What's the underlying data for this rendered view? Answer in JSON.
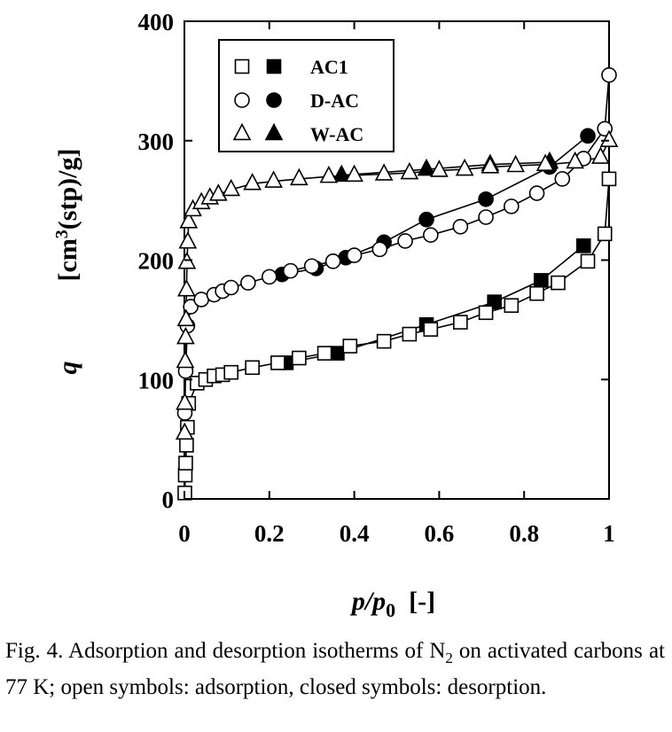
{
  "chart_data": {
    "type": "scatter",
    "xlabel": "p/p0 [-]",
    "xlabel_main": "p/p",
    "xlabel_sub": "0",
    "xlabel_unit": "[-]",
    "ylabel_var": "q",
    "ylabel_unit_a": "[cm",
    "ylabel_unit_sup": "3",
    "ylabel_unit_b": "(stp)/g]",
    "xlim": [
      0,
      1
    ],
    "ylim": [
      0,
      400
    ],
    "x_ticks": [
      0,
      0.2,
      0.4,
      0.6,
      0.8,
      1
    ],
    "x_tick_labels": [
      "0",
      "0.2",
      "0.4",
      "0.6",
      "0.8",
      "1"
    ],
    "y_ticks": [
      0,
      100,
      200,
      300,
      400
    ],
    "y_tick_labels": [
      "0",
      "100",
      "200",
      "300",
      "400"
    ],
    "grid": false,
    "legend_position": "top-left",
    "series": [
      {
        "name": "AC1",
        "marker": "square",
        "fill": "open",
        "x": [
          0.001,
          0.002,
          0.003,
          0.005,
          0.007,
          0.01,
          0.03,
          0.05,
          0.07,
          0.09,
          0.11,
          0.16,
          0.22,
          0.27,
          0.33,
          0.39,
          0.47,
          0.53,
          0.58,
          0.65,
          0.71,
          0.77,
          0.83,
          0.88,
          0.95,
          0.99,
          1.0
        ],
        "y": [
          5,
          20,
          30,
          45,
          60,
          80,
          97,
          100,
          103,
          104,
          106,
          110,
          114,
          118,
          122,
          128,
          132,
          138,
          142,
          148,
          156,
          162,
          172,
          181,
          199,
          222,
          268
        ]
      },
      {
        "name": "AC1",
        "marker": "square",
        "fill": "closed",
        "x": [
          0.24,
          0.36,
          0.57,
          0.73,
          0.84,
          0.94
        ],
        "y": [
          114,
          122,
          146,
          165,
          183,
          212
        ]
      },
      {
        "name": "D-AC",
        "marker": "circle",
        "fill": "open",
        "x": [
          0.001,
          0.003,
          0.007,
          0.015,
          0.04,
          0.07,
          0.09,
          0.11,
          0.15,
          0.2,
          0.25,
          0.3,
          0.35,
          0.4,
          0.46,
          0.52,
          0.58,
          0.65,
          0.71,
          0.77,
          0.83,
          0.89,
          0.94,
          0.99,
          1.0
        ],
        "y": [
          72,
          107,
          145,
          161,
          167,
          171,
          174,
          177,
          181,
          186,
          191,
          195,
          199,
          204,
          209,
          216,
          221,
          228,
          236,
          245,
          256,
          268,
          285,
          310,
          355
        ]
      },
      {
        "name": "D-AC",
        "marker": "circle",
        "fill": "closed",
        "x": [
          0.23,
          0.31,
          0.38,
          0.47,
          0.57,
          0.71,
          0.86,
          0.95
        ],
        "y": [
          188,
          193,
          202,
          215,
          234,
          251,
          278,
          304
        ]
      },
      {
        "name": "W-AC",
        "marker": "triangle",
        "fill": "open",
        "x": [
          0.0005,
          0.001,
          0.002,
          0.003,
          0.004,
          0.005,
          0.006,
          0.008,
          0.01,
          0.02,
          0.04,
          0.06,
          0.08,
          0.11,
          0.16,
          0.21,
          0.27,
          0.34,
          0.4,
          0.47,
          0.53,
          0.6,
          0.66,
          0.72,
          0.78,
          0.85,
          0.92,
          0.98,
          1.0
        ],
        "y": [
          55,
          80,
          115,
          135,
          150,
          175,
          198,
          215,
          232,
          242,
          248,
          252,
          255,
          259,
          264,
          266,
          268,
          270,
          271,
          272,
          273,
          275,
          276,
          278,
          279,
          280,
          282,
          286,
          300
        ]
      },
      {
        "name": "W-AC",
        "marker": "triangle",
        "fill": "closed",
        "x": [
          0.37,
          0.57,
          0.72,
          0.86
        ],
        "y": [
          271,
          276,
          280,
          282
        ]
      }
    ]
  },
  "caption": "Fig. 4. Adsorption and desorption isotherms of N₂ on activated carbons at 77 K; open symbols: adsorption, closed symbols: desorption.",
  "caption_parts": {
    "a": "Fig. 4. Adsorption and desorption isotherms of N",
    "sub": "2",
    "b": " on activated carbons at 77 K; open symbols: adsorption, closed symbols: desorption."
  }
}
